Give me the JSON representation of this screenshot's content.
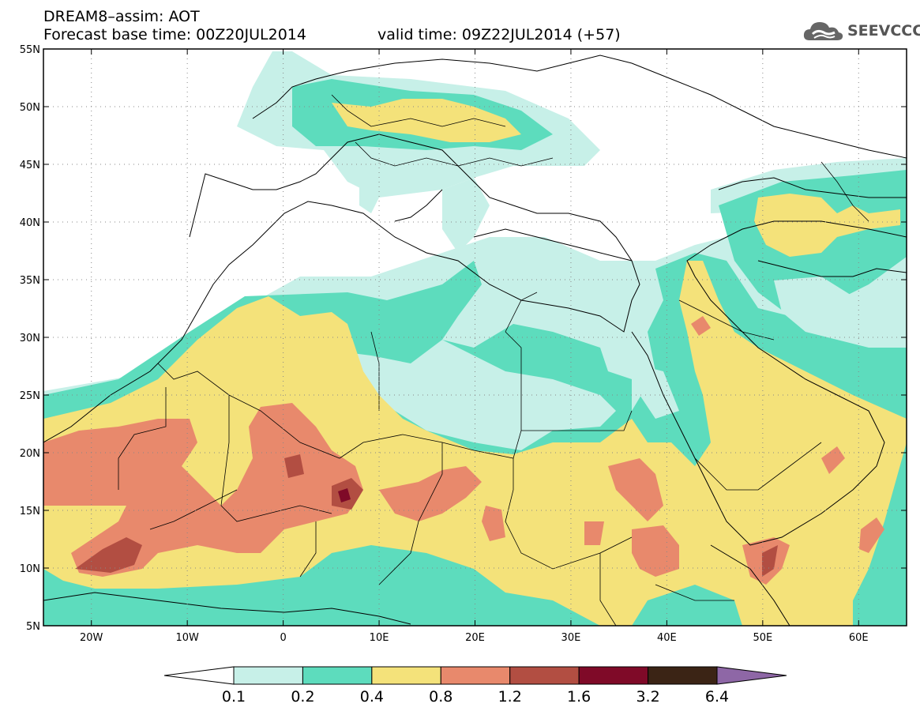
{
  "title": {
    "line1": "DREAM8–assim: AOT",
    "line2": "Forecast base time: 00Z20JUL2014",
    "valid": "valid time: 09Z22JUL2014 (+57)"
  },
  "logo": {
    "text": "SEEVCCC",
    "icon": "cloud-icon"
  },
  "axes": {
    "lon_range": [
      -25,
      65
    ],
    "lat_range": [
      5,
      55
    ],
    "x_ticks": [
      {
        "value": -20,
        "label": "20W"
      },
      {
        "value": -10,
        "label": "10W"
      },
      {
        "value": 0,
        "label": "0"
      },
      {
        "value": 10,
        "label": "10E"
      },
      {
        "value": 20,
        "label": "20E"
      },
      {
        "value": 30,
        "label": "30E"
      },
      {
        "value": 40,
        "label": "40E"
      },
      {
        "value": 50,
        "label": "50E"
      },
      {
        "value": 60,
        "label": "60E"
      }
    ],
    "y_ticks": [
      {
        "value": 55,
        "label": "55N"
      },
      {
        "value": 50,
        "label": "50N"
      },
      {
        "value": 45,
        "label": "45N"
      },
      {
        "value": 40,
        "label": "40N"
      },
      {
        "value": 35,
        "label": "35N"
      },
      {
        "value": 30,
        "label": "30N"
      },
      {
        "value": 25,
        "label": "25N"
      },
      {
        "value": 20,
        "label": "20N"
      },
      {
        "value": 15,
        "label": "15N"
      },
      {
        "value": 10,
        "label": "10N"
      },
      {
        "value": 5,
        "label": "5N"
      }
    ],
    "grid": "dotted"
  },
  "colorbar": {
    "labels": [
      "0.1",
      "0.2",
      "0.4",
      "0.8",
      "1.2",
      "1.6",
      "3.2",
      "6.4"
    ],
    "colors": [
      "#c7f0e8",
      "#5ddcbd",
      "#f4e27a",
      "#e8896c",
      "#b24e42",
      "#7f0a28",
      "#3b2415"
    ],
    "under_color": "#ffffff",
    "over_color": "#8e67a6"
  },
  "palette": {
    "c1": "#c7f0e8",
    "c2": "#5ddcbd",
    "c3": "#f4e27a",
    "c4": "#e8896c",
    "c5": "#b24e42",
    "c6": "#7f0a28"
  }
}
